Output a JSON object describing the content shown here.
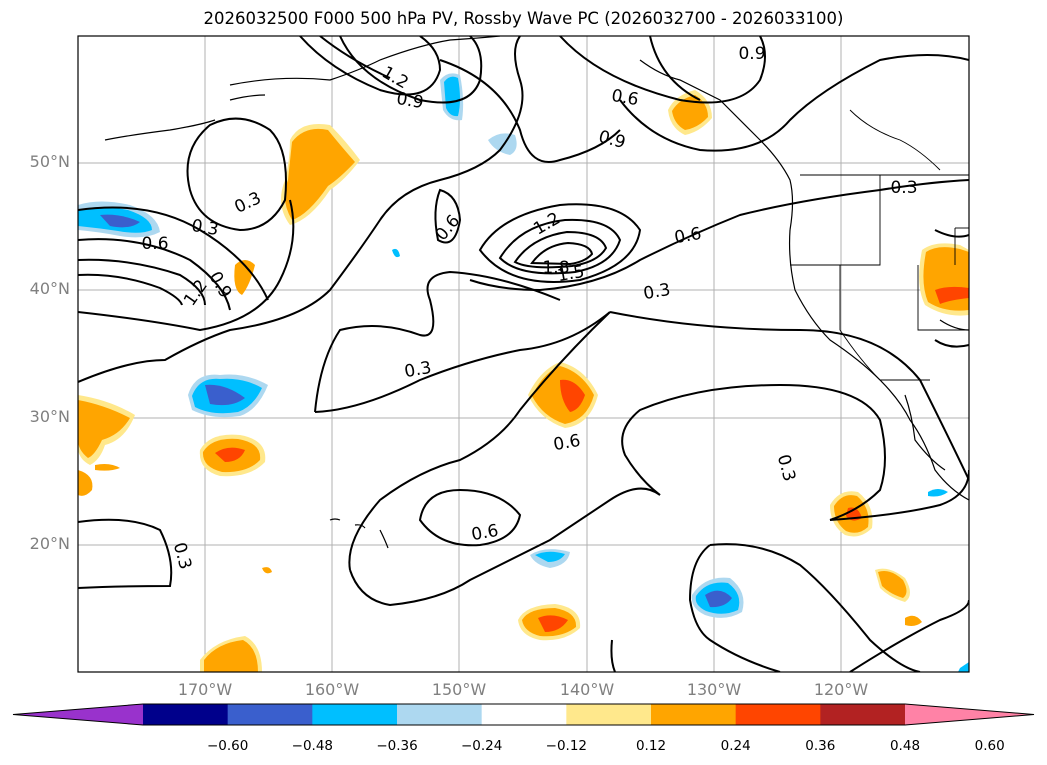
{
  "title": "2026032500 F000 500 hPa PV, Rossby Wave PC (2026032700 - 2026033100)",
  "lat_labels": [
    "50°N",
    "40°N",
    "30°N",
    "20°N"
  ],
  "lon_labels": [
    "170°W",
    "160°W",
    "150°W",
    "140°W",
    "130°W",
    "120°W"
  ],
  "contour_labels": [
    "0.9",
    "1.2",
    "0.9",
    "0.6",
    "0.9",
    "0.3",
    "0.3",
    "0.6",
    "0.3",
    "0.6",
    "0.9",
    "1.2",
    "1.2",
    "1.8",
    "1.5",
    "0.6",
    "0.3",
    "0.3",
    "0.6",
    "0.3",
    "0.6",
    "0.3"
  ],
  "colorbar": {
    "ticks": [
      "−0.60",
      "−0.48",
      "−0.36",
      "−0.24",
      "−0.12",
      "0.12",
      "0.24",
      "0.36",
      "0.48",
      "0.60"
    ],
    "colors": [
      "#9932cc",
      "#00008b",
      "#3a5fcd",
      "#00bfff",
      "#add8f0",
      "#ffffff",
      "#ffe88c",
      "#ffa500",
      "#ff4500",
      "#b22222",
      "#ff82a6"
    ]
  }
}
